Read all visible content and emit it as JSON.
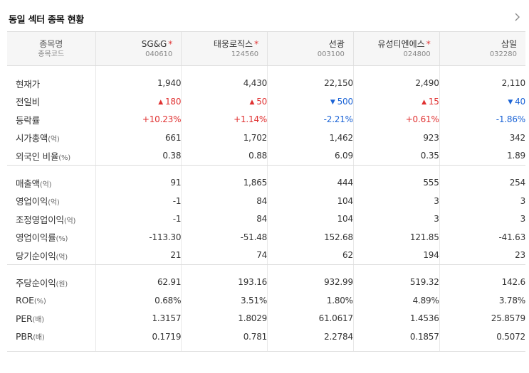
{
  "title": "동일 섹터 종목 현황",
  "header": {
    "name_label": "종목명",
    "code_label": "종목코드",
    "companies": [
      {
        "name": "SG&G",
        "code": "040610",
        "star": "*"
      },
      {
        "name": "태웅로직스",
        "code": "124560",
        "star": "*"
      },
      {
        "name": "선광",
        "code": "003100",
        "star": ""
      },
      {
        "name": "유성티엔에스",
        "code": "024800",
        "star": "*"
      },
      {
        "name": "삼일",
        "code": "032280",
        "star": ""
      }
    ]
  },
  "sections": [
    {
      "rows": [
        {
          "label": "현재가",
          "unit": "",
          "values": [
            "1,940",
            "4,430",
            "22,150",
            "2,490",
            "2,110"
          ]
        },
        {
          "label": "전일비",
          "unit": "",
          "change": true,
          "directions": [
            "up",
            "up",
            "down",
            "up",
            "down"
          ],
          "values": [
            "180",
            "50",
            "500",
            "15",
            "40"
          ]
        },
        {
          "label": "등락률",
          "unit": "",
          "rate": true,
          "directions": [
            "up",
            "up",
            "down",
            "up",
            "down"
          ],
          "values": [
            "+10.23%",
            "+1.14%",
            "-2.21%",
            "+0.61%",
            "-1.86%"
          ]
        },
        {
          "label": "시가총액",
          "unit": "(억)",
          "values": [
            "661",
            "1,702",
            "1,462",
            "923",
            "342"
          ]
        },
        {
          "label": "외국인 비율",
          "unit": "(%)",
          "values": [
            "0.38",
            "0.88",
            "6.09",
            "0.35",
            "1.89"
          ]
        }
      ]
    },
    {
      "rows": [
        {
          "label": "매출액",
          "unit": "(억)",
          "values": [
            "91",
            "1,865",
            "444",
            "555",
            "254"
          ]
        },
        {
          "label": "영업이익",
          "unit": "(억)",
          "values": [
            "-1",
            "84",
            "104",
            "3",
            "3"
          ]
        },
        {
          "label": "조정영업이익",
          "unit": "(억)",
          "values": [
            "-1",
            "84",
            "104",
            "3",
            "3"
          ]
        },
        {
          "label": "영업이익률",
          "unit": "(%)",
          "values": [
            "-113.30",
            "-51.48",
            "152.68",
            "121.85",
            "-41.63"
          ]
        },
        {
          "label": "당기순이익",
          "unit": "(억)",
          "values": [
            "21",
            "74",
            "62",
            "194",
            "23"
          ]
        }
      ]
    },
    {
      "rows": [
        {
          "label": "주당순이익",
          "unit": "(원)",
          "values": [
            "62.91",
            "193.16",
            "932.99",
            "519.32",
            "142.6"
          ]
        },
        {
          "label": "ROE",
          "unit": "(%)",
          "values": [
            "0.68%",
            "3.51%",
            "1.80%",
            "4.89%",
            "3.78%"
          ]
        },
        {
          "label": "PER",
          "unit": "(배)",
          "values": [
            "1.3157",
            "1.8029",
            "61.0617",
            "1.4536",
            "25.8579"
          ]
        },
        {
          "label": "PBR",
          "unit": "(배)",
          "values": [
            "0.1719",
            "0.781",
            "2.2784",
            "0.1857",
            "0.5072"
          ]
        }
      ]
    }
  ],
  "colors": {
    "up": "#e03131",
    "down": "#1c64d6",
    "header_bg": "#f6f6f6"
  },
  "icons": {
    "more": "chevron-right-icon",
    "up": "triangle-up-icon",
    "down": "triangle-down-icon"
  }
}
